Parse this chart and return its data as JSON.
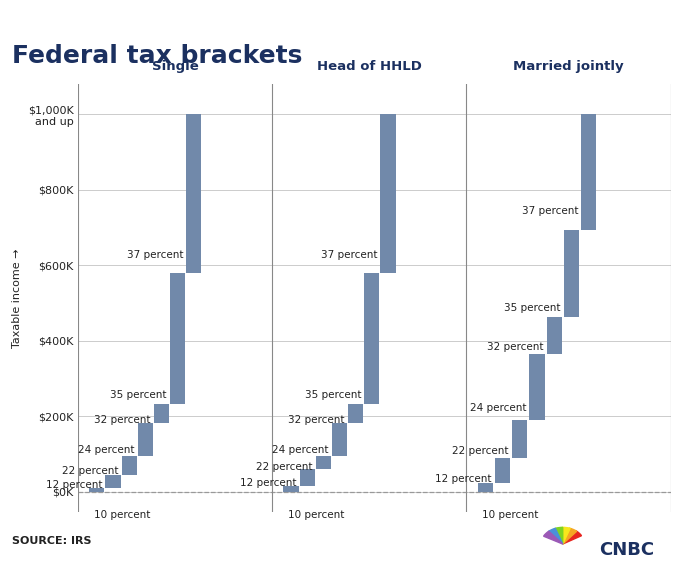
{
  "title": "Federal tax brackets",
  "source": "SOURCE: IRS",
  "ylabel": "Taxable income →",
  "groups": [
    "Single",
    "Head of HHLD",
    "Married jointly"
  ],
  "bar_color": "#7189aa",
  "header_color": "#1b3060",
  "grid_color": "#cccccc",
  "divider_color": "#888888",
  "text_color": "#222222",
  "title_color": "#1b3060",
  "bg_color": "#ffffff",
  "brackets": {
    "Single": [
      {
        "rate": "10 percent",
        "low": 0,
        "high": 11000
      },
      {
        "rate": "12 percent",
        "low": 11000,
        "high": 44725
      },
      {
        "rate": "22 percent",
        "low": 44725,
        "high": 95375
      },
      {
        "rate": "24 percent",
        "low": 95375,
        "high": 182050
      },
      {
        "rate": "32 percent",
        "low": 182050,
        "high": 231250
      },
      {
        "rate": "35 percent",
        "low": 231250,
        "high": 578125
      },
      {
        "rate": "37 percent",
        "low": 578125,
        "high": 1000000
      }
    ],
    "Head of HHLD": [
      {
        "rate": "10 percent",
        "low": 0,
        "high": 15700
      },
      {
        "rate": "12 percent",
        "low": 15700,
        "high": 59850
      },
      {
        "rate": "22 percent",
        "low": 59850,
        "high": 95350
      },
      {
        "rate": "24 percent",
        "low": 95350,
        "high": 182150
      },
      {
        "rate": "32 percent",
        "low": 182150,
        "high": 231250
      },
      {
        "rate": "35 percent",
        "low": 231250,
        "high": 578100
      },
      {
        "rate": "37 percent",
        "low": 578100,
        "high": 1000000
      }
    ],
    "Married jointly": [
      {
        "rate": "10 percent",
        "low": 0,
        "high": 22000
      },
      {
        "rate": "12 percent",
        "low": 22000,
        "high": 89450
      },
      {
        "rate": "22 percent",
        "low": 89450,
        "high": 190750
      },
      {
        "rate": "24 percent",
        "low": 190750,
        "high": 364200
      },
      {
        "rate": "32 percent",
        "low": 364200,
        "high": 462500
      },
      {
        "rate": "35 percent",
        "low": 462500,
        "high": 693750
      },
      {
        "rate": "37 percent",
        "low": 693750,
        "high": 1000000
      }
    ]
  },
  "yticks": [
    0,
    200000,
    400000,
    600000,
    800000,
    1000000
  ],
  "ytick_labels": [
    "$0K",
    "$200K",
    "$400K",
    "$600K",
    "$800K",
    "$1,000K\nand up"
  ],
  "ylim": [
    -55000,
    1080000
  ]
}
